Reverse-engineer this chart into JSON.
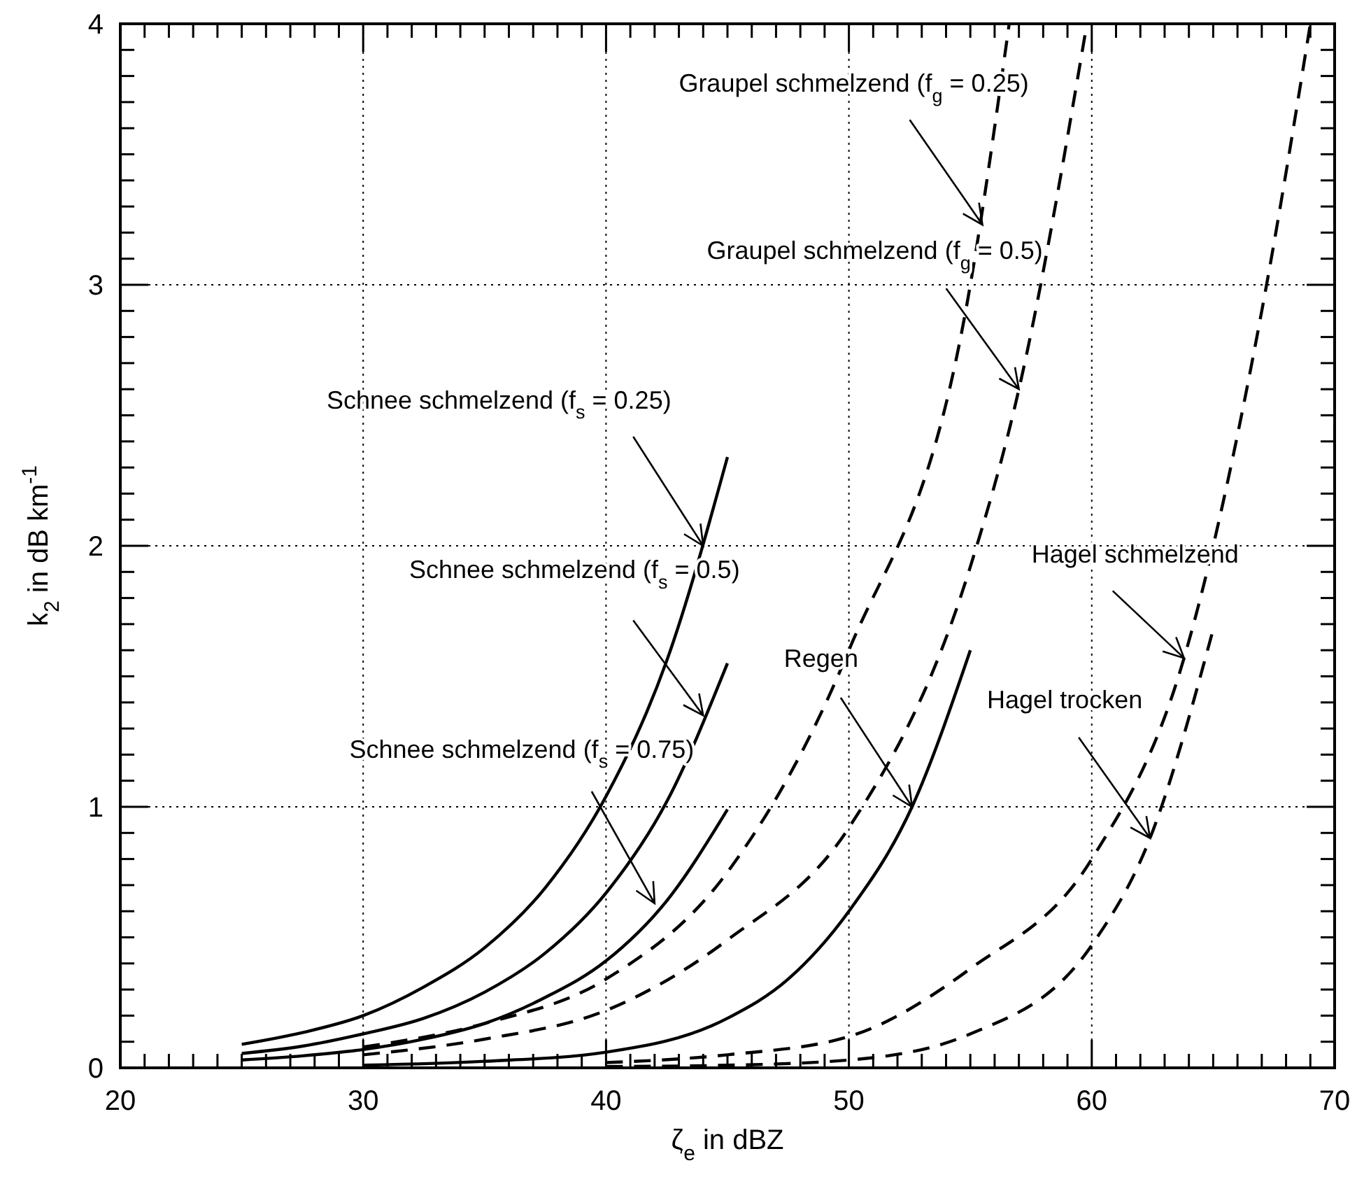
{
  "chart_data": {
    "type": "line",
    "xlabel": "ζ$_{e}$ in dBZ",
    "ylabel": "k$_{2}$ in dB km$^{-1}$",
    "xlim": [
      20,
      70
    ],
    "ylim": [
      0,
      4
    ],
    "xticks": [
      20,
      {
        "value": 21,
        "label": null
      },
      {
        "value": 22,
        "label": null
      },
      {
        "value": 23,
        "label": null
      },
      {
        "value": 24,
        "label": null
      },
      {
        "value": 25,
        "label": null
      },
      {
        "value": 26,
        "label": null
      },
      {
        "value": 27,
        "label": null
      },
      {
        "value": 28,
        "label": null
      },
      {
        "value": 29,
        "label": null
      },
      30,
      {
        "value": 31,
        "label": null
      },
      {
        "value": 32,
        "label": null
      },
      {
        "value": 33,
        "label": null
      },
      {
        "value": 34,
        "label": null
      },
      {
        "value": 35,
        "label": null
      },
      {
        "value": 36,
        "label": null
      },
      {
        "value": 37,
        "label": null
      },
      {
        "value": 38,
        "label": null
      },
      {
        "value": 39,
        "label": null
      },
      40,
      {
        "value": 41,
        "label": null
      },
      {
        "value": 42,
        "label": null
      },
      {
        "value": 43,
        "label": null
      },
      {
        "value": 44,
        "label": null
      },
      {
        "value": 45,
        "label": null
      },
      {
        "value": 46,
        "label": null
      },
      {
        "value": 47,
        "label": null
      },
      {
        "value": 48,
        "label": null
      },
      {
        "value": 49,
        "label": null
      },
      50,
      {
        "value": 51,
        "label": null
      },
      {
        "value": 52,
        "label": null
      },
      {
        "value": 53,
        "label": null
      },
      {
        "value": 54,
        "label": null
      },
      {
        "value": 55,
        "label": null
      },
      {
        "value": 56,
        "label": null
      },
      {
        "value": 57,
        "label": null
      },
      {
        "value": 58,
        "label": null
      },
      {
        "value": 59,
        "label": null
      },
      60,
      {
        "value": 61,
        "label": null
      },
      {
        "value": 62,
        "label": null
      },
      {
        "value": 63,
        "label": null
      },
      {
        "value": 64,
        "label": null
      },
      {
        "value": 65,
        "label": null
      },
      {
        "value": 66,
        "label": null
      },
      {
        "value": 67,
        "label": null
      },
      {
        "value": 68,
        "label": null
      },
      {
        "value": 69,
        "label": null
      },
      70
    ],
    "yticks": [
      0,
      {
        "value": 0.1,
        "label": null
      },
      {
        "value": 0.2,
        "label": null
      },
      {
        "value": 0.3,
        "label": null
      },
      {
        "value": 0.4,
        "label": null
      },
      {
        "value": 0.5,
        "label": null
      },
      {
        "value": 0.6,
        "label": null
      },
      {
        "value": 0.7,
        "label": null
      },
      {
        "value": 0.8,
        "label": null
      },
      {
        "value": 0.9,
        "label": null
      },
      1,
      {
        "value": 1.1,
        "label": null
      },
      {
        "value": 1.2,
        "label": null
      },
      {
        "value": 1.3,
        "label": null
      },
      {
        "value": 1.4,
        "label": null
      },
      {
        "value": 1.5,
        "label": null
      },
      {
        "value": 1.6,
        "label": null
      },
      {
        "value": 1.7,
        "label": null
      },
      {
        "value": 1.8,
        "label": null
      },
      {
        "value": 1.9,
        "label": null
      },
      2,
      {
        "value": 2.1,
        "label": null
      },
      {
        "value": 2.2,
        "label": null
      },
      {
        "value": 2.3,
        "label": null
      },
      {
        "value": 2.4,
        "label": null
      },
      {
        "value": 2.5,
        "label": null
      },
      {
        "value": 2.6,
        "label": null
      },
      {
        "value": 2.7,
        "label": null
      },
      {
        "value": 2.8,
        "label": null
      },
      {
        "value": 2.9,
        "label": null
      },
      3,
      {
        "value": 3.1,
        "label": null
      },
      {
        "value": 3.2,
        "label": null
      },
      {
        "value": 3.3,
        "label": null
      },
      {
        "value": 3.4,
        "label": null
      },
      {
        "value": 3.5,
        "label": null
      },
      {
        "value": 3.6,
        "label": null
      },
      {
        "value": 3.7,
        "label": null
      },
      {
        "value": 3.8,
        "label": null
      },
      {
        "value": 3.9,
        "label": null
      },
      4
    ],
    "grid": true,
    "series": [
      {
        "color": "#000000",
        "line_style": "solid",
        "x": [
          25,
          27.5,
          30,
          32.5,
          35,
          37.5,
          40,
          42.5,
          45
        ],
        "values": [
          0.09,
          0.135,
          0.2,
          0.31,
          0.46,
          0.69,
          1.04,
          1.56,
          2.34
        ]
      },
      {
        "color": "#000000",
        "line_style": "solid",
        "x": [
          25,
          27.5,
          30,
          32.5,
          35,
          37.5,
          40,
          42.5,
          45
        ],
        "values": [
          0.055,
          0.083,
          0.13,
          0.19,
          0.29,
          0.44,
          0.67,
          1.02,
          1.55
        ]
      },
      {
        "color": "#000000",
        "line_style": "solid",
        "x": [
          25,
          27.5,
          30,
          32.5,
          35,
          37.5,
          40,
          42.5,
          45
        ],
        "values": [
          0.03,
          0.046,
          0.07,
          0.11,
          0.17,
          0.27,
          0.41,
          0.64,
          0.99
        ]
      },
      {
        "color": "#000000",
        "line_style": "dashed",
        "x": [
          30,
          35,
          40,
          45,
          50,
          55,
          56.6
        ],
        "values": [
          0.08,
          0.17,
          0.34,
          0.75,
          1.6,
          3.0,
          4.0
        ]
      },
      {
        "color": "#000000",
        "line_style": "dashed",
        "x": [
          30,
          35,
          40,
          45,
          50,
          55,
          57,
          59.8
        ],
        "values": [
          0.05,
          0.11,
          0.22,
          0.49,
          0.92,
          1.92,
          2.6,
          4.0
        ]
      },
      {
        "color": "#000000",
        "line_style": "solid",
        "x": [
          30,
          35,
          40,
          45,
          47.5,
          50,
          52.6,
          55
        ],
        "values": [
          0.01,
          0.025,
          0.06,
          0.19,
          0.34,
          0.6,
          1.0,
          1.6
        ]
      },
      {
        "color": "#000000",
        "line_style": "dashed",
        "x": [
          40,
          45,
          50,
          55,
          60,
          63.8,
          67,
          69
        ],
        "values": [
          0.02,
          0.05,
          0.12,
          0.38,
          0.8,
          1.57,
          2.9,
          4.0
        ]
      },
      {
        "color": "#000000",
        "line_style": "dashed",
        "x": [
          40,
          45,
          50,
          55,
          60,
          62.4,
          65
        ],
        "values": [
          0.005,
          0.01,
          0.03,
          0.13,
          0.47,
          0.88,
          1.68
        ]
      }
    ],
    "annotations": [
      {
        "text": "Graupel schmelzend (f$_{g}$ = 0.25)",
        "x": 55.5,
        "y": 3.23
      },
      {
        "text": "Graupel schmelzend (f$_{g}$ = 0.5)",
        "x": 57,
        "y": 2.6
      },
      {
        "text": "Schnee schmelzend (f$_{s}$ = 0.25)",
        "x": 44,
        "y": 2.0
      },
      {
        "text": "Schnee schmelzend (f$_{s}$ = 0.5)",
        "x": 44,
        "y": 1.35
      },
      {
        "text": "Schnee schmelzend (f$_{s}$ = 0.75)",
        "x": 42,
        "y": 0.63
      },
      {
        "text": "Regen",
        "x": 52.6,
        "y": 1.0
      },
      {
        "text": "Hagel schmelzend",
        "x": 63.8,
        "y": 1.57
      },
      {
        "text": "Hagel trocken",
        "x": 62.4,
        "y": 0.88
      }
    ]
  }
}
